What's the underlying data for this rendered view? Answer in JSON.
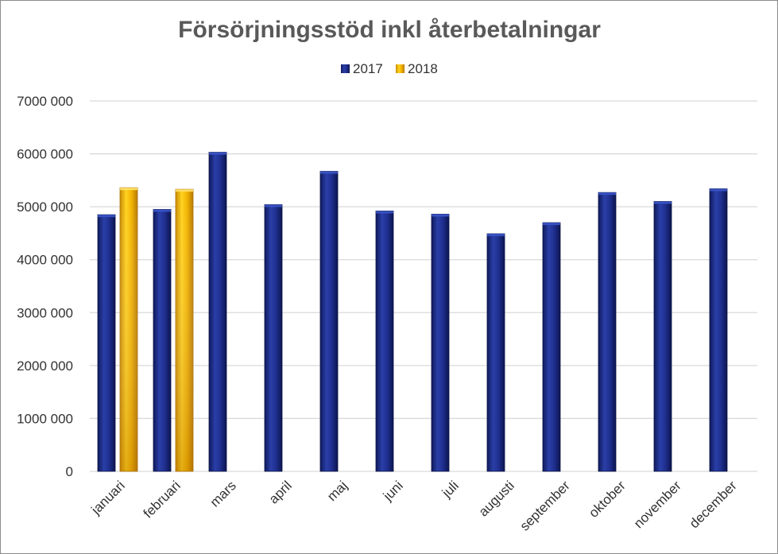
{
  "chart_data": {
    "type": "bar",
    "title": "Försörjningsstöd inkl återbetalningar",
    "xlabel": "",
    "ylabel": "",
    "ylim": [
      0,
      7000000
    ],
    "yticks": [
      0,
      1000000,
      2000000,
      3000000,
      4000000,
      5000000,
      6000000,
      7000000
    ],
    "ytick_labels": [
      "0",
      "1000 000",
      "2000 000",
      "3000 000",
      "4000 000",
      "5000 000",
      "6000 000",
      "7000 000"
    ],
    "grid": true,
    "legend_position": "top-center",
    "categories": [
      "januari",
      "februari",
      "mars",
      "april",
      "maj",
      "juni",
      "juli",
      "augusti",
      "september",
      "oktober",
      "november",
      "december"
    ],
    "series": [
      {
        "name": "2017",
        "color": "#1f2f8f",
        "values": [
          4850000,
          4950000,
          6030000,
          5040000,
          5670000,
          4920000,
          4860000,
          4490000,
          4700000,
          5270000,
          5100000,
          5340000
        ]
      },
      {
        "name": "2018",
        "color": "#f2b400",
        "values": [
          5360000,
          5330000,
          null,
          null,
          null,
          null,
          null,
          null,
          null,
          null,
          null,
          null
        ]
      }
    ]
  }
}
